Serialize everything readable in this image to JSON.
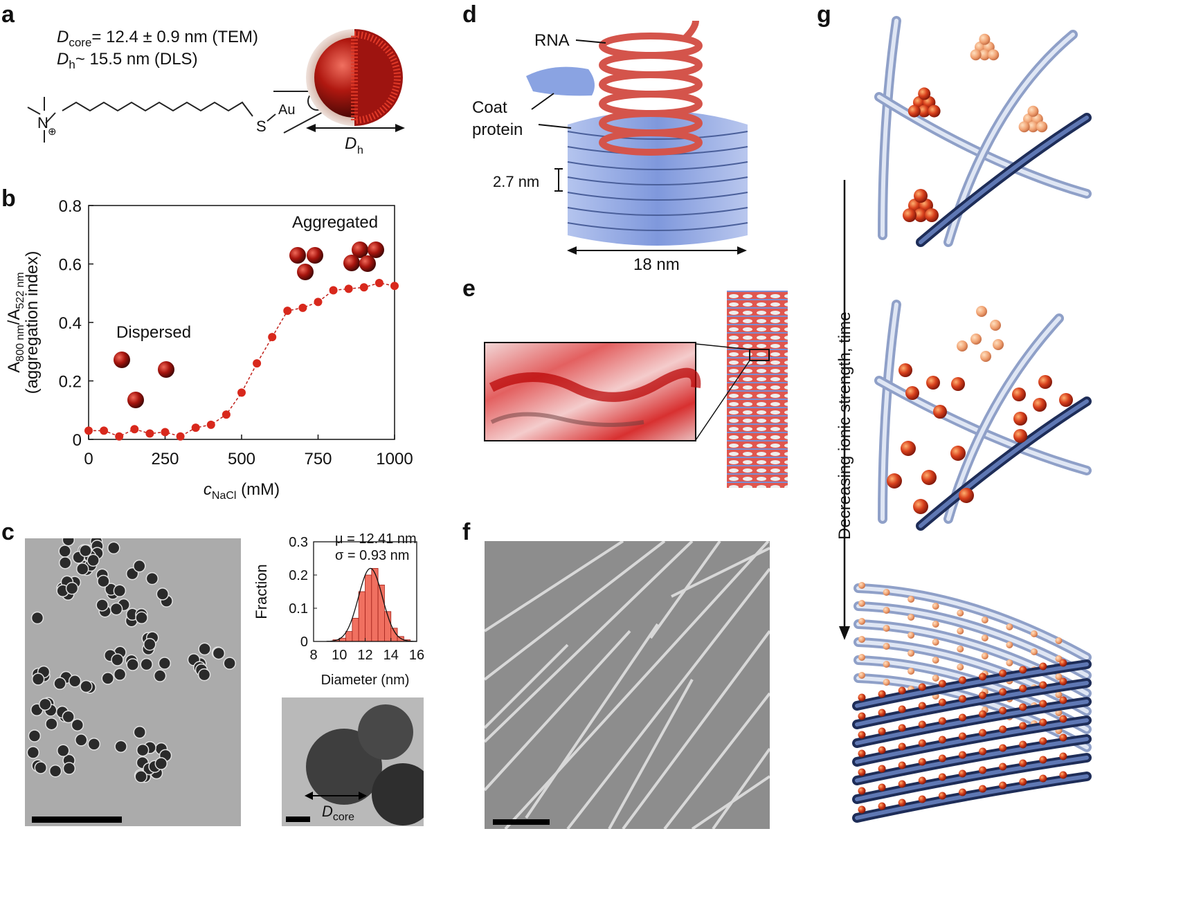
{
  "panels": {
    "a": {
      "letter": "a",
      "dcore_sub": "core",
      "dcore_text": "= 12.4 ± 0.9 nm (TEM)",
      "dh_sub": "h",
      "dh_text": "~ 15.5 nm (DLS)",
      "d_symbol": "D",
      "n_label": "N",
      "plus": "⊕",
      "s_label": "S",
      "au_label": "Au",
      "dh_axis_sub": "h"
    },
    "b": {
      "letter": "b"
    },
    "c": {
      "letter": "c",
      "mu_text": "μ = 12.41 nm",
      "sigma_text": "σ = 0.93 nm",
      "dcore_sub": "core"
    },
    "d": {
      "letter": "d",
      "rna": "RNA",
      "coat1": "Coat",
      "coat2": "protein",
      "pitch": "2.7 nm",
      "width": "18 nm"
    },
    "e": {
      "letter": "e"
    },
    "f": {
      "letter": "f"
    },
    "g": {
      "letter": "g",
      "arrow_label": "Decreasing ionic strength, time"
    }
  },
  "colors": {
    "gold_red": "#c0201a",
    "dark_red": "#6e0d08",
    "tmv_blue": "#8ea8e6",
    "rna_red": "#d9564d",
    "fiber_light": "#c3cfe6",
    "fiber_dark": "#2a3a66"
  },
  "chart_data": [
    {
      "type": "line",
      "title": "",
      "xlabel_var": "c",
      "xlabel_sub": "NaCl",
      "xlabel_unit": "(mM)",
      "ylabel_top_a": "A",
      "ylabel_top_sub1": "800 nm",
      "ylabel_top_b": "/A",
      "ylabel_top_sub2": "522 nm",
      "ylabel_bottom": "(aggregation index)",
      "xlim": [
        0,
        1000
      ],
      "ylim": [
        0,
        0.8
      ],
      "xticks": [
        0,
        250,
        500,
        750,
        1000
      ],
      "yticks": [
        0,
        0.2,
        0.4,
        0.6,
        0.8
      ],
      "ytick_labels": [
        "0",
        "0.2",
        "0.4",
        "0.6",
        "0.8"
      ],
      "annotations": [
        "Dispersed",
        "Aggregated"
      ],
      "x": [
        0,
        50,
        100,
        150,
        200,
        250,
        300,
        350,
        400,
        450,
        500,
        550,
        600,
        650,
        700,
        750,
        800,
        850,
        900,
        950,
        1000
      ],
      "y": [
        0.03,
        0.03,
        0.01,
        0.035,
        0.02,
        0.025,
        0.01,
        0.04,
        0.05,
        0.085,
        0.16,
        0.26,
        0.35,
        0.44,
        0.45,
        0.47,
        0.51,
        0.515,
        0.52,
        0.535,
        0.525
      ],
      "grid": false
    },
    {
      "type": "bar",
      "title": "",
      "xlabel": "Diameter (nm)",
      "ylabel": "Fraction",
      "xlim": [
        8,
        16
      ],
      "ylim": [
        0,
        0.3
      ],
      "xticks": [
        8,
        10,
        12,
        14,
        16
      ],
      "yticks": [
        0,
        0.1,
        0.2,
        0.3
      ],
      "ytick_labels": [
        "0",
        "0.1",
        "0.2",
        "0.3"
      ],
      "bins": [
        9.75,
        10.25,
        10.75,
        11.25,
        11.75,
        12.25,
        12.75,
        13.25,
        13.75,
        14.25,
        14.75,
        15.25
      ],
      "values": [
        0.005,
        0.01,
        0.03,
        0.07,
        0.15,
        0.2,
        0.22,
        0.17,
        0.09,
        0.04,
        0.015,
        0.005
      ],
      "fit": {
        "mu": 12.41,
        "sigma": 0.93
      },
      "grid": false
    }
  ]
}
